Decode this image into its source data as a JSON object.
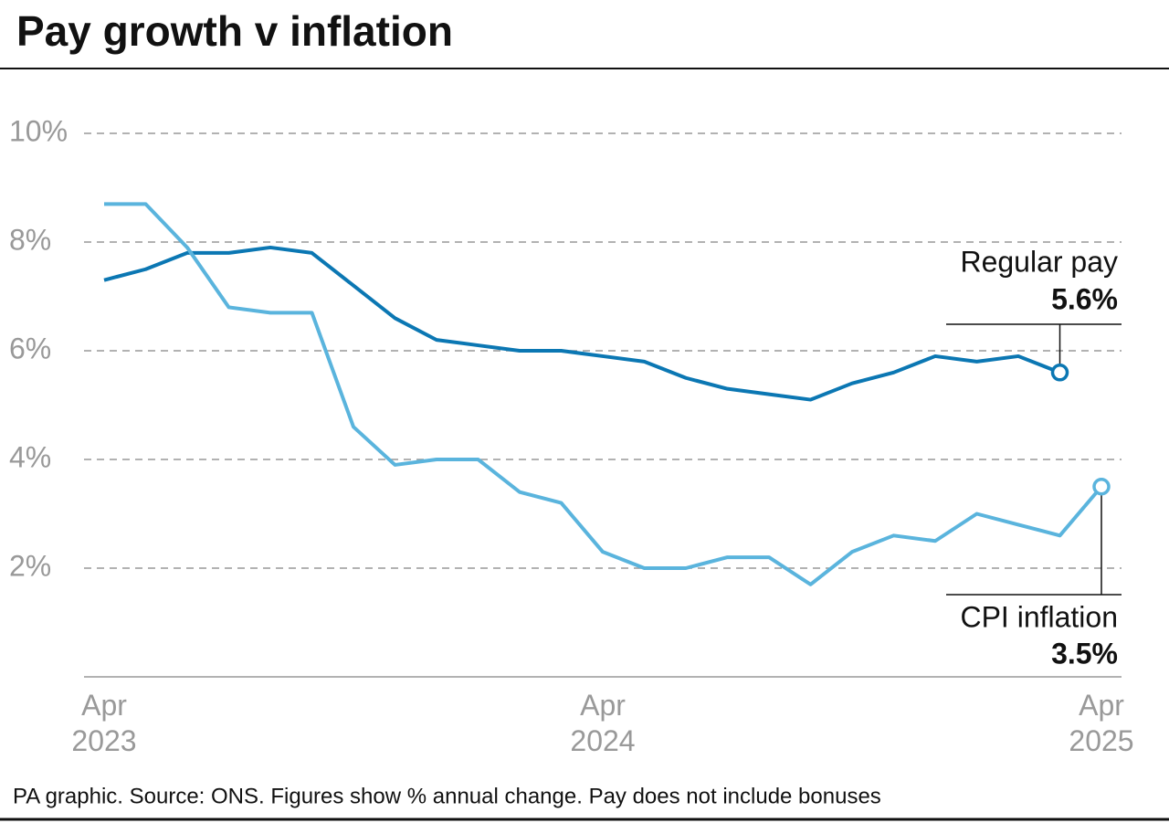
{
  "chart_data": {
    "type": "line",
    "title": "Pay growth v inflation",
    "source": "PA graphic. Source: ONS. Figures show % annual change. Pay does not include bonuses",
    "categories": [
      "Apr 2023",
      null,
      null,
      null,
      null,
      null,
      null,
      null,
      null,
      null,
      null,
      null,
      "Apr 2024",
      null,
      null,
      null,
      null,
      null,
      null,
      null,
      null,
      null,
      null,
      null,
      "Apr 2025"
    ],
    "series": [
      {
        "name": "Regular pay",
        "color": "#0b77b3",
        "values": [
          7.3,
          7.5,
          7.8,
          7.8,
          7.9,
          7.8,
          7.2,
          6.6,
          6.2,
          6.1,
          6.0,
          6.0,
          5.9,
          5.8,
          5.5,
          5.3,
          5.2,
          5.1,
          5.4,
          5.6,
          5.9,
          5.8,
          5.9,
          5.6,
          null
        ],
        "value_labels": [
          null,
          null,
          null,
          null,
          null,
          null,
          null,
          null,
          null,
          null,
          null,
          null,
          null,
          null,
          null,
          null,
          null,
          null,
          null,
          null,
          null,
          null,
          null,
          "5.6%",
          null
        ]
      },
      {
        "name": "CPI inflation",
        "color": "#5ab4dd",
        "values": [
          8.7,
          8.7,
          7.9,
          6.8,
          6.7,
          6.7,
          4.6,
          3.9,
          4.0,
          4.0,
          3.4,
          3.2,
          2.3,
          2.0,
          2.0,
          2.2,
          2.2,
          1.7,
          2.3,
          2.6,
          2.5,
          3.0,
          2.8,
          2.6,
          3.5
        ],
        "value_labels": [
          null,
          null,
          null,
          null,
          null,
          null,
          null,
          null,
          null,
          null,
          null,
          null,
          null,
          null,
          null,
          null,
          null,
          null,
          null,
          null,
          null,
          null,
          null,
          null,
          "3.5%"
        ]
      }
    ],
    "ylim": [
      0,
      10
    ],
    "yticks": [
      {
        "value": 2,
        "label": "2%"
      },
      {
        "value": 4,
        "label": "4%"
      },
      {
        "value": 6,
        "label": "6%"
      },
      {
        "value": 8,
        "label": "8%"
      },
      {
        "value": 10,
        "label": "10%"
      }
    ],
    "grid": true
  }
}
